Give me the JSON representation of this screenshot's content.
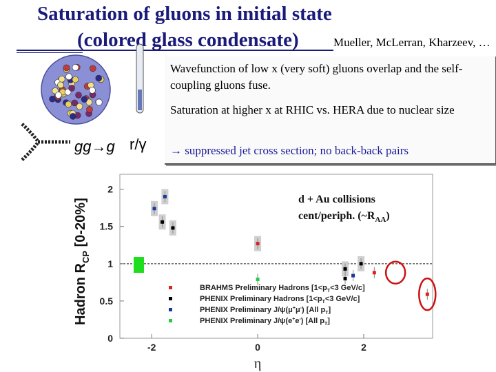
{
  "slide": {
    "title_line1": "Saturation of gluons in initial state",
    "title_line2": "(colored glass condensate)",
    "authors": "Mueller, McLerran, Kharzeev, …",
    "bullets": [
      "Wavefunction of low x (very soft) gluons overlap and the self-coupling gluons fuse.",
      "Saturation at higher x at RHIC vs. HERA due to nuclear size",
      "→ suppressed jet cross section; no back-back pairs"
    ],
    "diagram_labels": {
      "process": "gg→g",
      "size": "r/γ"
    }
  },
  "chart_data": {
    "type": "scatter",
    "ylabel": "Hadron R",
    "ylabel_sub": "CP",
    "ylabel_suffix": " [0-20%]",
    "xlabel": "η",
    "xlim": [
      -2.6,
      3.3
    ],
    "ylim": [
      0,
      2.2
    ],
    "xticks": [
      -2,
      0,
      2
    ],
    "yticks": [
      0,
      0.5,
      1,
      1.5,
      2
    ],
    "reference_line": 1,
    "annotation_line1": "d + Au collisions",
    "annotation_line2": "cent/periph. (~R",
    "annotation_sub": "AA",
    "annotation_close": ")",
    "colors": {
      "brahms": "#dd2222",
      "phenix_hadron": "#000000",
      "jpsi_mu": "#1a3a9a",
      "jpsi_e": "#22cc44",
      "circle": "#cc1111"
    },
    "series": [
      {
        "name": "BRAHMS Preliminary Hadrons [1<p",
        "name_sub": "T",
        "name_suffix": "<3 GeV/c]",
        "points": [
          {
            "x": 0.0,
            "y": 1.27
          },
          {
            "x": 2.2,
            "y": 0.88
          },
          {
            "x": 3.2,
            "y": 0.59
          }
        ]
      },
      {
        "name": "PHENIX Preliminary Hadrons [1<p",
        "name_sub": "T",
        "name_suffix": "<3 GeV/c]",
        "points": [
          {
            "x": -1.8,
            "y": 1.56
          },
          {
            "x": -1.6,
            "y": 1.48
          },
          {
            "x": 1.95,
            "y": 1.0
          },
          {
            "x": 1.65,
            "y": 0.93
          },
          {
            "x": 1.65,
            "y": 0.8
          }
        ]
      },
      {
        "name": "PHENIX Preliminary J/ψ(μ",
        "name_sup": "+",
        "name_mid": "μ",
        "name_sup2": "-",
        "name_suffix": ") [All p",
        "name_sub": "T",
        "name_close": "]",
        "points": [
          {
            "x": -1.75,
            "y": 1.9
          },
          {
            "x": -1.95,
            "y": 1.74
          },
          {
            "x": 1.8,
            "y": 0.84
          }
        ]
      },
      {
        "name": "PHENIX Preliminary J/ψ(e",
        "name_sup": "+",
        "name_mid": "e",
        "name_sup2": "-",
        "name_suffix": ") [All p",
        "name_sub": "T",
        "name_close": "]",
        "points": [
          {
            "x": 0.0,
            "y": 0.79
          }
        ]
      }
    ]
  }
}
